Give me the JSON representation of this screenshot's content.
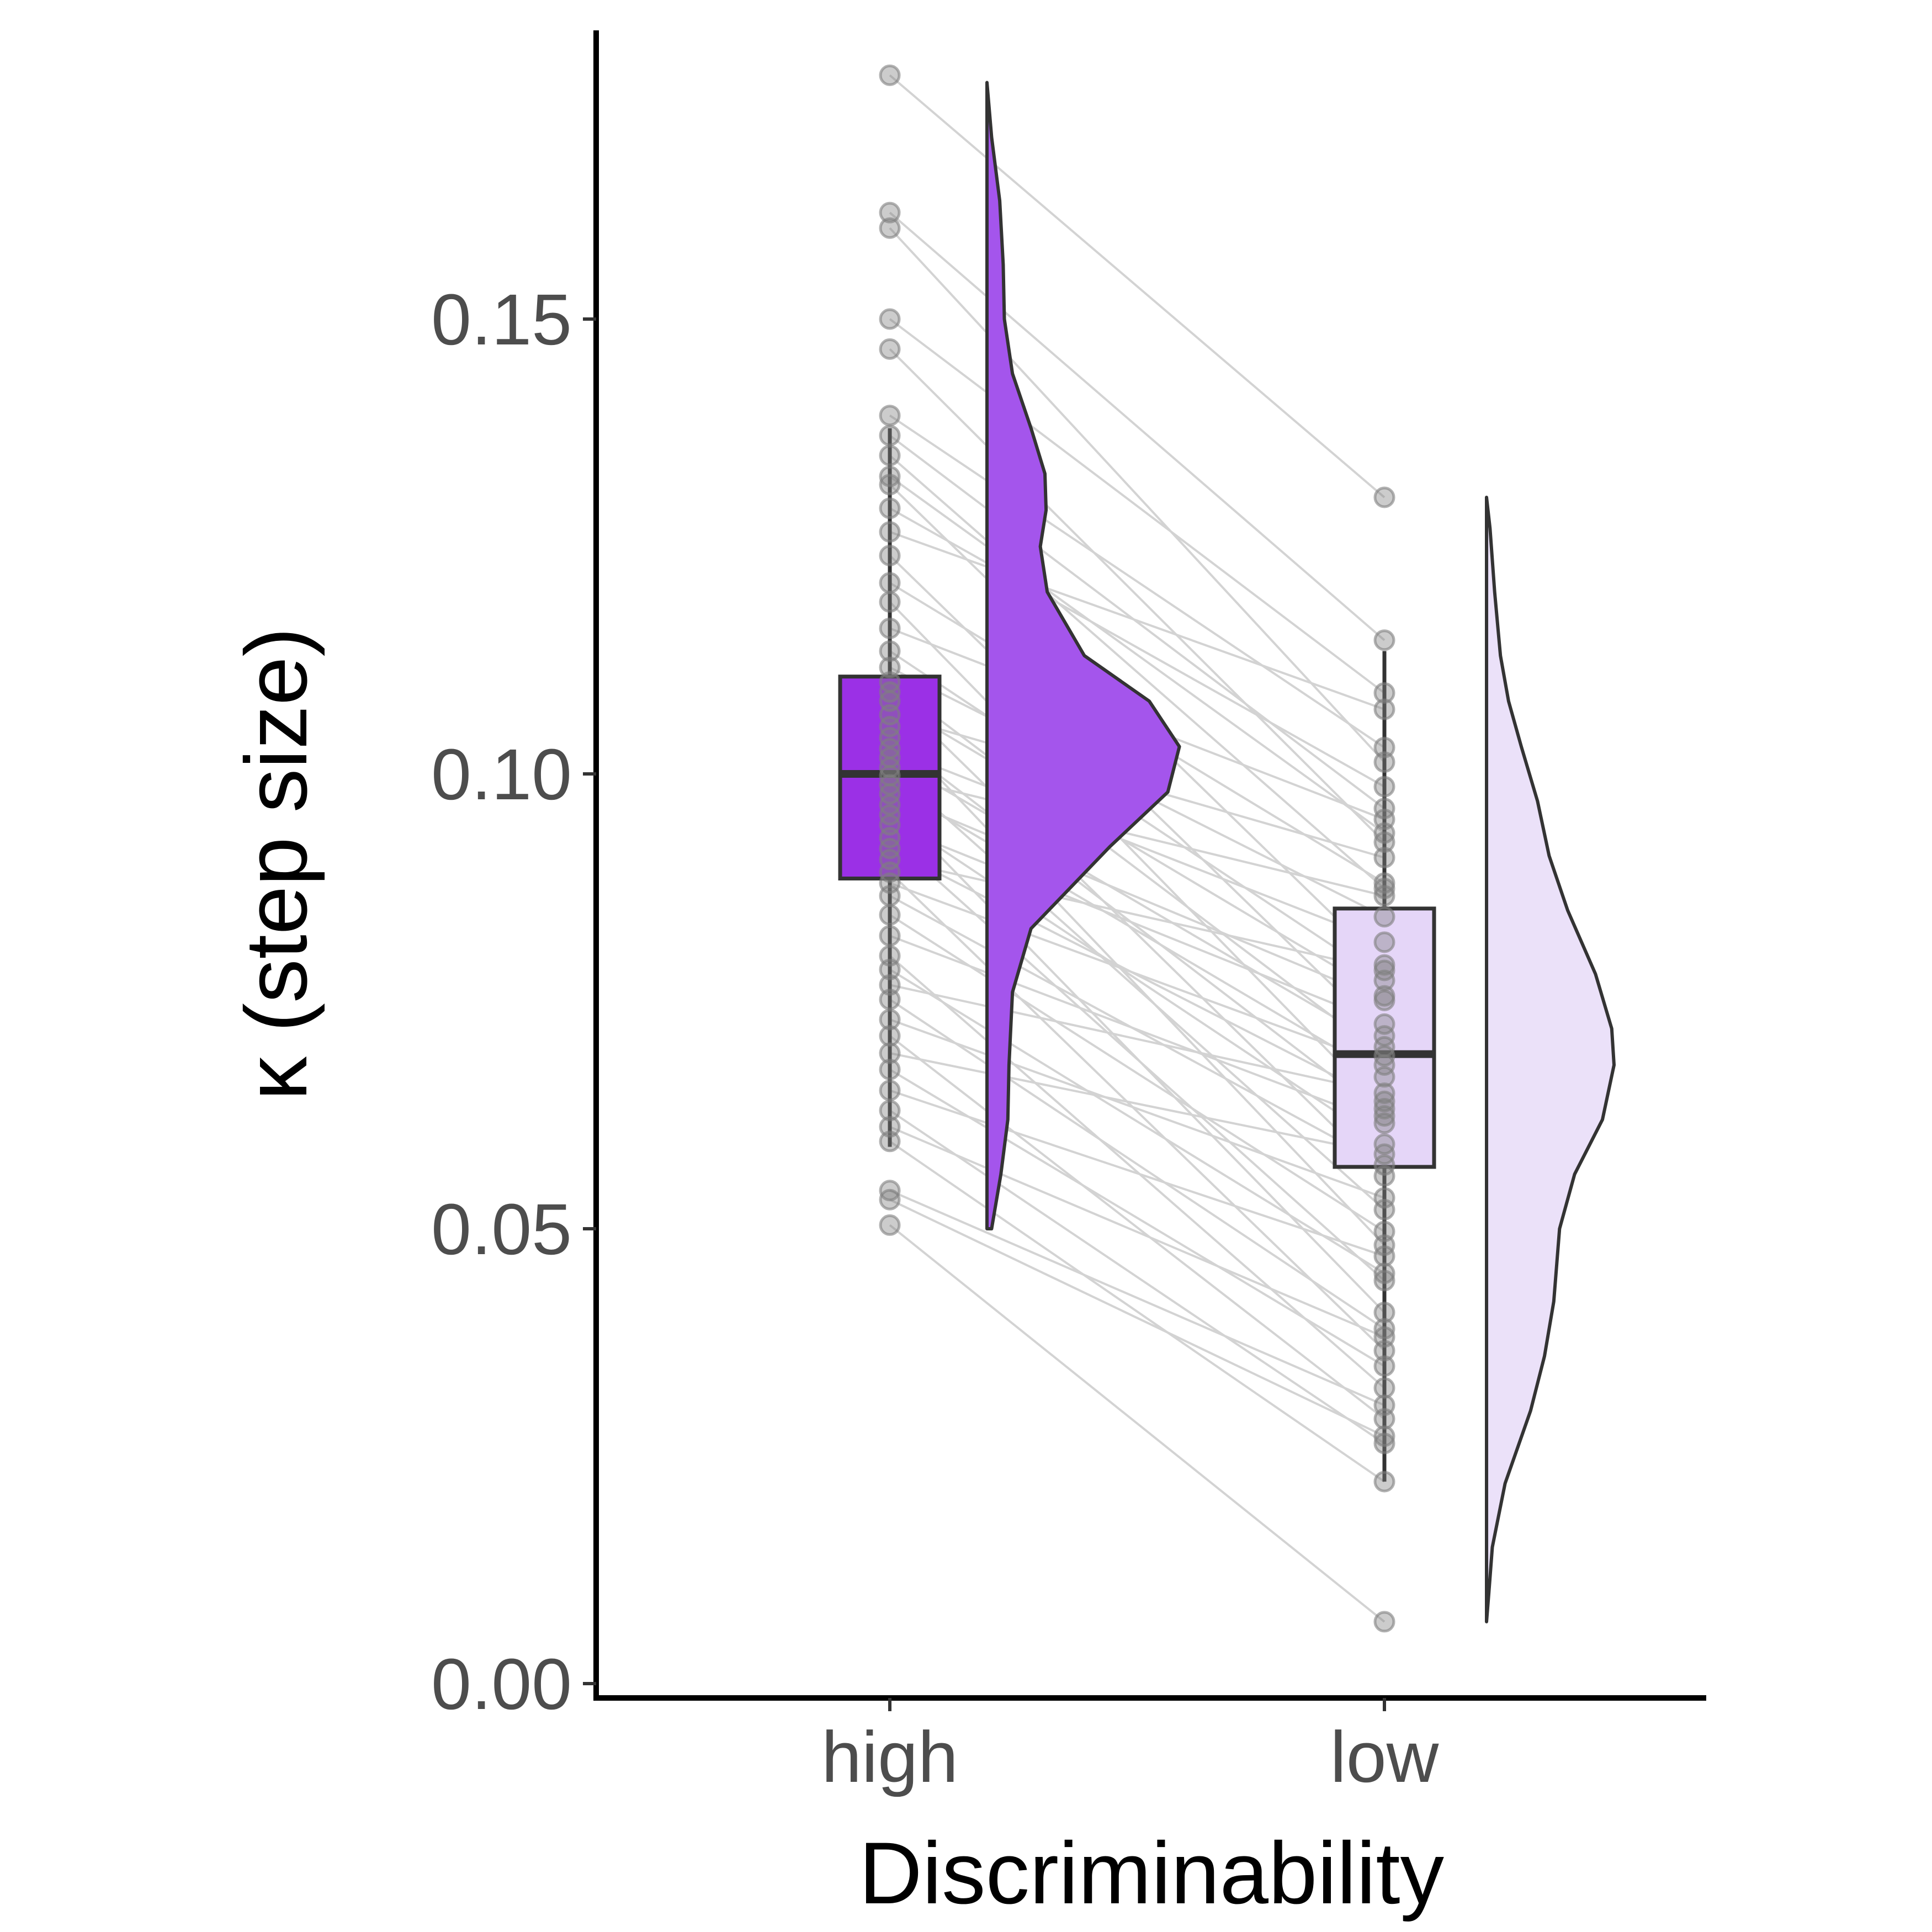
{
  "chart_data": {
    "type": "raincloud",
    "xlabel": "Discriminability",
    "ylabel": "κ (step size)",
    "categories": [
      "high",
      "low"
    ],
    "ylim": [
      0,
      0.183
    ],
    "yticks": [
      0.0,
      0.05,
      0.1,
      0.15
    ],
    "ytick_labels": [
      "0.00",
      "0.05",
      "0.10",
      "0.15"
    ],
    "grid": false,
    "legend": "none",
    "colors": {
      "high_fill": "#9b30e6",
      "high_density": "#a455ec",
      "low_fill": "#e5d6f8",
      "low_density": "#ebe1f9",
      "outline": "#333333",
      "pair_line": "#d3d3d3",
      "point": "#7f7f7f"
    },
    "boxplots": [
      {
        "category": "high",
        "q1": 0.0885,
        "median": 0.1,
        "q3": 0.1107,
        "whisker_low": 0.059,
        "whisker_high": 0.138
      },
      {
        "category": "low",
        "q1": 0.0568,
        "median": 0.0692,
        "q3": 0.0852,
        "whisker_low": 0.0222,
        "whisker_high": 0.1135
      }
    ],
    "densities": [
      {
        "category": "high",
        "range": [
          0.05,
          0.176
        ],
        "profile": [
          [
            0.05,
            0.02
          ],
          [
            0.056,
            0.06
          ],
          [
            0.062,
            0.09
          ],
          [
            0.068,
            0.095
          ],
          [
            0.076,
            0.11
          ],
          [
            0.083,
            0.19
          ],
          [
            0.092,
            0.53
          ],
          [
            0.098,
            0.78
          ],
          [
            0.103,
            0.83
          ],
          [
            0.108,
            0.7
          ],
          [
            0.113,
            0.42
          ],
          [
            0.12,
            0.26
          ],
          [
            0.125,
            0.23
          ],
          [
            0.129,
            0.255
          ],
          [
            0.133,
            0.25
          ],
          [
            0.138,
            0.19
          ],
          [
            0.144,
            0.11
          ],
          [
            0.15,
            0.075
          ],
          [
            0.156,
            0.07
          ],
          [
            0.163,
            0.055
          ],
          [
            0.17,
            0.02
          ],
          [
            0.176,
            0.0
          ]
        ]
      },
      {
        "category": "low",
        "range": [
          0.0068,
          0.1304
        ],
        "profile": [
          [
            0.0068,
            0.0
          ],
          [
            0.01,
            0.01
          ],
          [
            0.015,
            0.025
          ],
          [
            0.022,
            0.08
          ],
          [
            0.03,
            0.19
          ],
          [
            0.036,
            0.25
          ],
          [
            0.042,
            0.29
          ],
          [
            0.05,
            0.315
          ],
          [
            0.056,
            0.38
          ],
          [
            0.062,
            0.5
          ],
          [
            0.068,
            0.55
          ],
          [
            0.072,
            0.54
          ],
          [
            0.078,
            0.47
          ],
          [
            0.085,
            0.35
          ],
          [
            0.091,
            0.27
          ],
          [
            0.097,
            0.22
          ],
          [
            0.103,
            0.15
          ],
          [
            0.108,
            0.095
          ],
          [
            0.113,
            0.06
          ],
          [
            0.12,
            0.035
          ],
          [
            0.127,
            0.015
          ],
          [
            0.1304,
            0.0
          ]
        ]
      }
    ],
    "pairs": [
      [
        0.1768,
        0.1304
      ],
      [
        0.1617,
        0.1147
      ],
      [
        0.16,
        0.1013
      ],
      [
        0.15,
        0.1089
      ],
      [
        0.1467,
        0.0925
      ],
      [
        0.1394,
        0.1029
      ],
      [
        0.1372,
        0.0962
      ],
      [
        0.135,
        0.0874
      ],
      [
        0.1327,
        0.0935
      ],
      [
        0.1318,
        0.079
      ],
      [
        0.1292,
        0.0986
      ],
      [
        0.1266,
        0.1071
      ],
      [
        0.124,
        0.0712
      ],
      [
        0.121,
        0.088
      ],
      [
        0.1189,
        0.0632
      ],
      [
        0.116,
        0.095
      ],
      [
        0.1135,
        0.0773
      ],
      [
        0.1117,
        0.0843
      ],
      [
        0.1101,
        0.069
      ],
      [
        0.109,
        0.0558
      ],
      [
        0.108,
        0.0756
      ],
      [
        0.1065,
        0.0908
      ],
      [
        0.1052,
        0.0482
      ],
      [
        0.104,
        0.0624
      ],
      [
        0.1028,
        0.0815
      ],
      [
        0.1018,
        0.07
      ],
      [
        0.1007,
        0.0521
      ],
      [
        0.0998,
        0.0866
      ],
      [
        0.0988,
        0.0667
      ],
      [
        0.0978,
        0.0751
      ],
      [
        0.0966,
        0.0408
      ],
      [
        0.0955,
        0.0593
      ],
      [
        0.0944,
        0.0725
      ],
      [
        0.093,
        0.0443
      ],
      [
        0.0918,
        0.064
      ],
      [
        0.0906,
        0.0784
      ],
      [
        0.0892,
        0.0366
      ],
      [
        0.088,
        0.068
      ],
      [
        0.0866,
        0.057
      ],
      [
        0.0845,
        0.0497
      ],
      [
        0.0822,
        0.0616
      ],
      [
        0.08,
        0.0325
      ],
      [
        0.0785,
        0.0451
      ],
      [
        0.0768,
        0.0649
      ],
      [
        0.0752,
        0.039
      ],
      [
        0.073,
        0.0534
      ],
      [
        0.0712,
        0.0291
      ],
      [
        0.0693,
        0.0582
      ],
      [
        0.0675,
        0.0349
      ],
      [
        0.0652,
        0.047
      ],
      [
        0.063,
        0.0264
      ],
      [
        0.0612,
        0.0381
      ],
      [
        0.0596,
        0.0222
      ],
      [
        0.0542,
        0.0306
      ],
      [
        0.0532,
        0.0272
      ],
      [
        0.0504,
        0.0068
      ]
    ]
  }
}
